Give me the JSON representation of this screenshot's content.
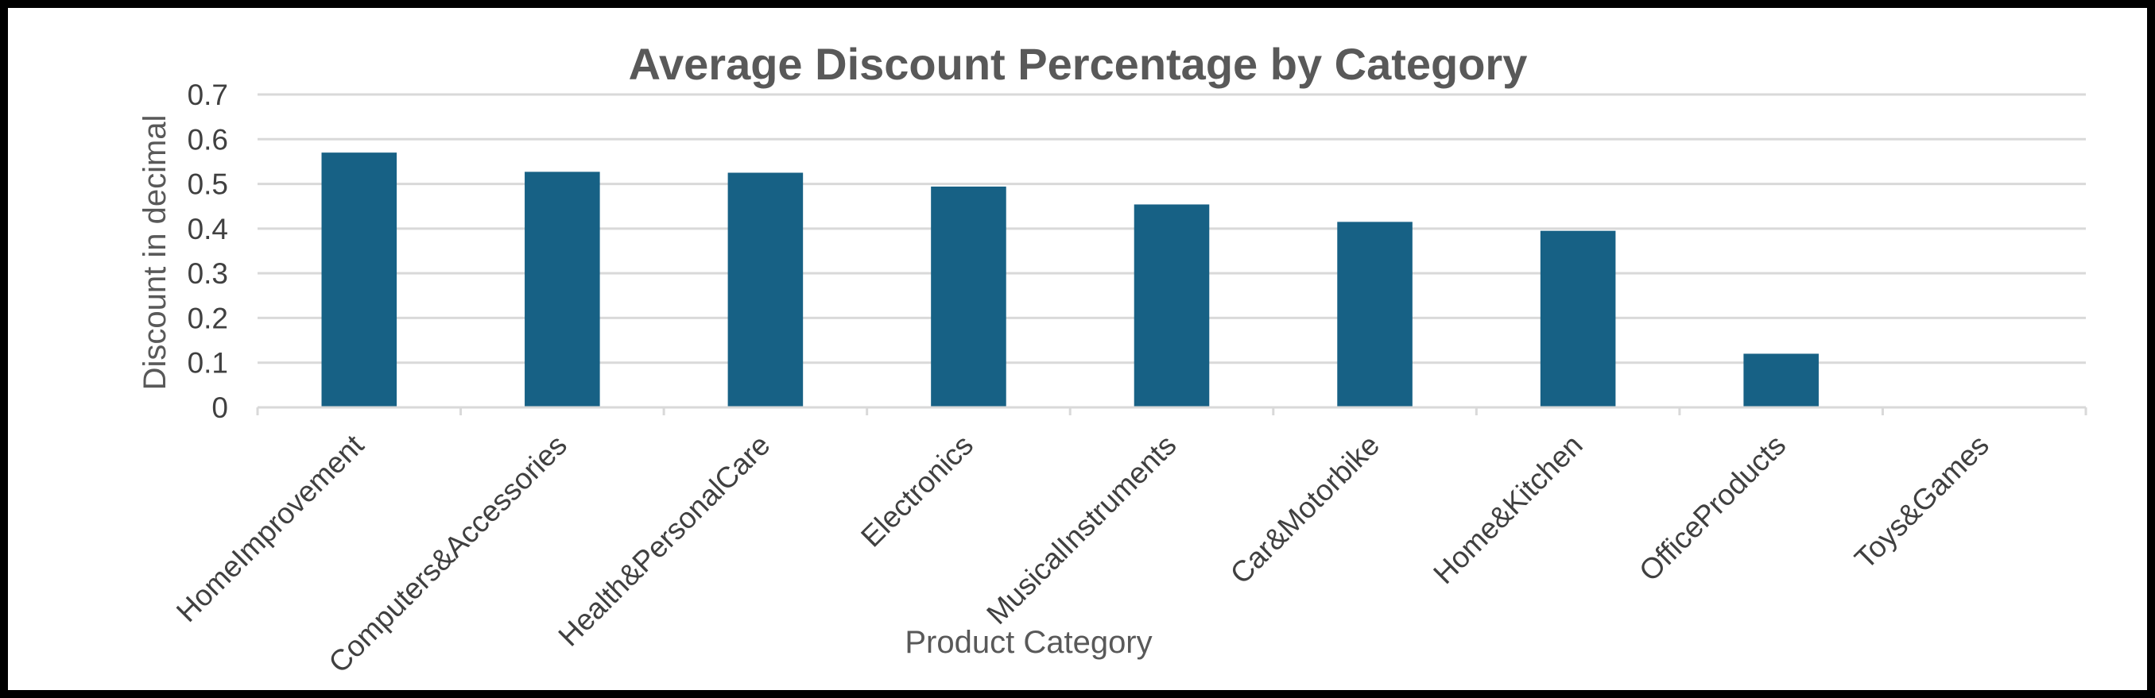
{
  "chart_data": {
    "type": "bar",
    "title": "Average Discount Percentage by Category",
    "xlabel": "Product Category",
    "ylabel": "Discount in decimal",
    "categories": [
      "HomeImprovement",
      "Computers&Accessories",
      "Health&PersonalCare",
      "Electronics",
      "MusicalInstruments",
      "Car&Motorbike",
      "Home&Kitchen",
      "OfficeProducts",
      "Toys&Games"
    ],
    "values": [
      0.57,
      0.527,
      0.525,
      0.494,
      0.454,
      0.415,
      0.395,
      0.12,
      0
    ],
    "ylim": [
      0,
      0.7
    ],
    "yticks": [
      "0",
      "0.1",
      "0.2",
      "0.3",
      "0.4",
      "0.5",
      "0.6",
      "0.7"
    ],
    "grid": true,
    "legend": "none",
    "colors": {
      "bar": "#176185",
      "grid": "#d9d9d9",
      "axis": "#d9d9d9",
      "border": "#000000"
    }
  }
}
